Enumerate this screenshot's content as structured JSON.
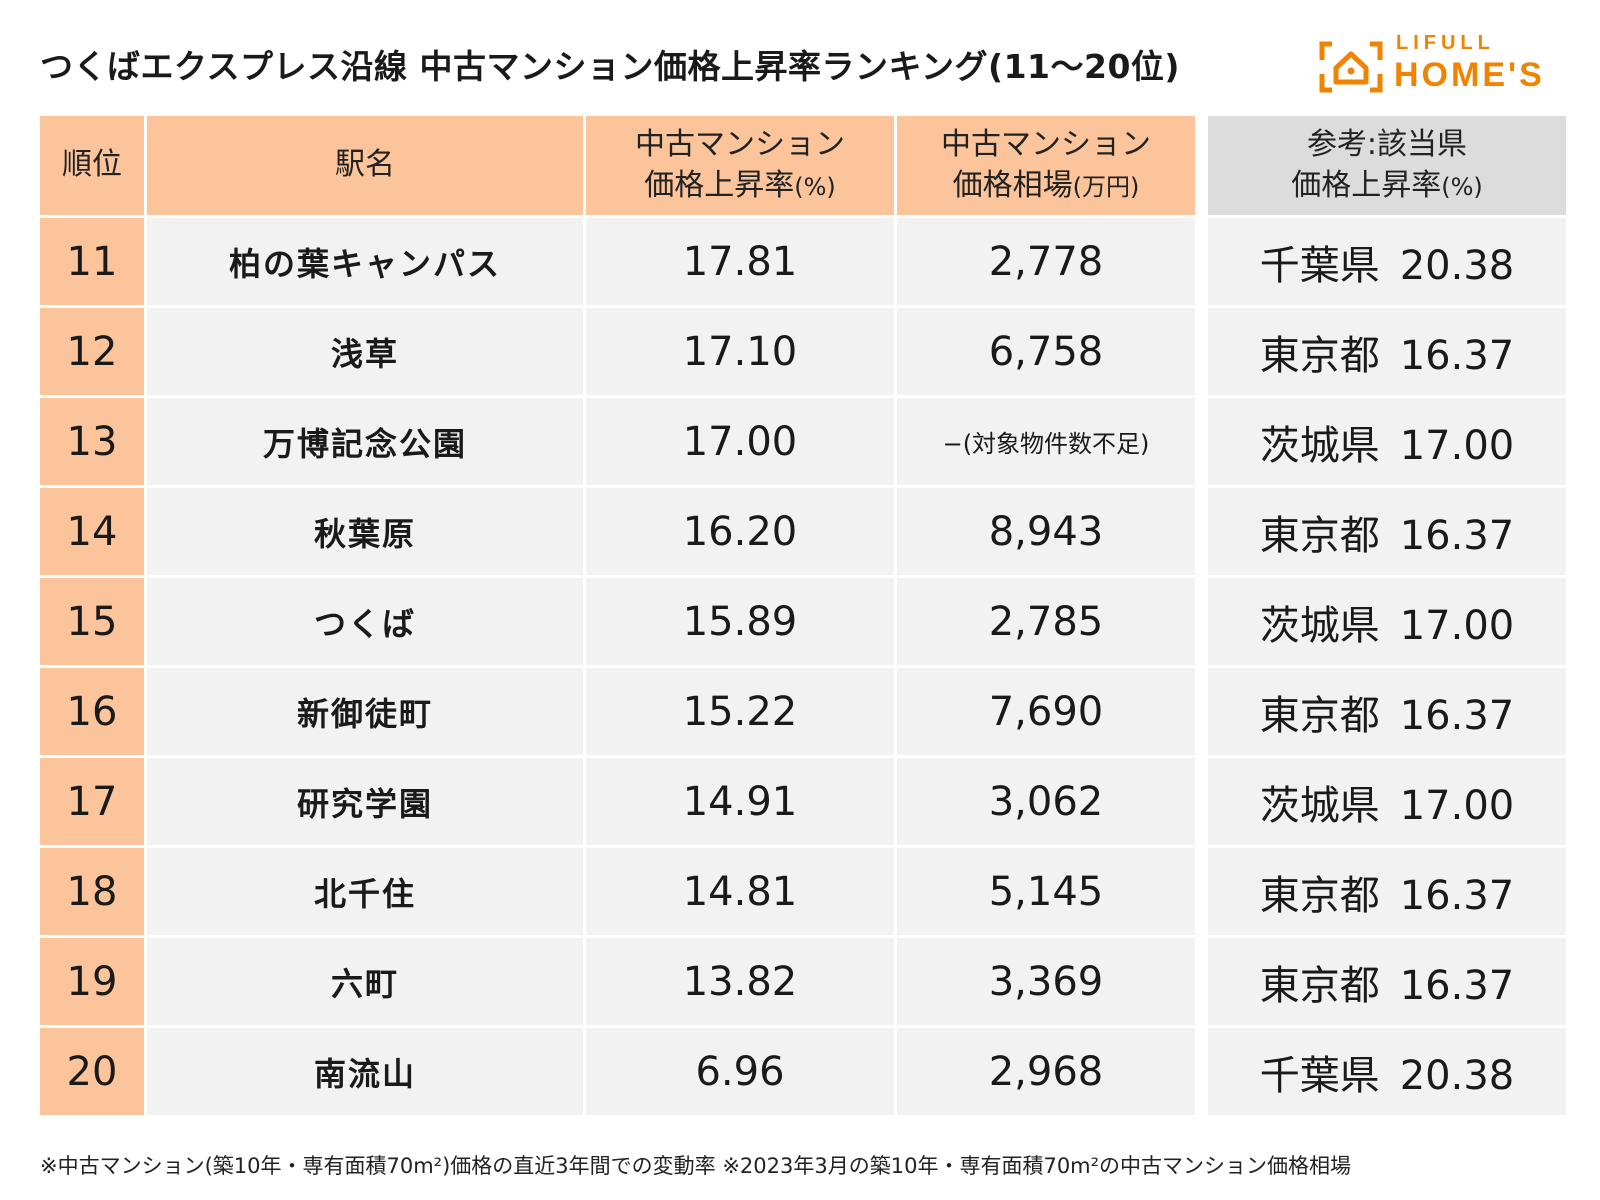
{
  "title": "つくばエクスプレス沿線 中古マンション価格上昇率ランキング(11〜20位)",
  "logo": {
    "top": "LIFULL",
    "main": "HOME'S",
    "icon": "house-icon",
    "color": "#f08300"
  },
  "colors": {
    "header_orange": "#fbc49a",
    "header_gray": "#dcdcdc",
    "cell_bg": "#f2f2f2"
  },
  "chart_data": {
    "type": "table",
    "columns": {
      "rank": "順位",
      "station": "駅名",
      "rate_line1": "中古マンション",
      "rate_line2": "価格上昇率",
      "rate_unit": "(%)",
      "price_line1": "中古マンション",
      "price_line2": "価格相場",
      "price_unit": "(万円)",
      "ref_line1": "参考:該当県",
      "ref_line2": "価格上昇率",
      "ref_unit": "(%)"
    },
    "rows": [
      {
        "rank": "11",
        "station": "柏の葉キャンパス",
        "rate": "17.81",
        "price": "2,778",
        "pref": "千葉県",
        "pref_rate": "20.38"
      },
      {
        "rank": "12",
        "station": "浅草",
        "rate": "17.10",
        "price": "6,758",
        "pref": "東京都",
        "pref_rate": "16.37"
      },
      {
        "rank": "13",
        "station": "万博記念公園",
        "rate": "17.00",
        "price": "−(対象物件数不足)",
        "pref": "茨城県",
        "pref_rate": "17.00"
      },
      {
        "rank": "14",
        "station": "秋葉原",
        "rate": "16.20",
        "price": "8,943",
        "pref": "東京都",
        "pref_rate": "16.37"
      },
      {
        "rank": "15",
        "station": "つくば",
        "rate": "15.89",
        "price": "2,785",
        "pref": "茨城県",
        "pref_rate": "17.00"
      },
      {
        "rank": "16",
        "station": "新御徒町",
        "rate": "15.22",
        "price": "7,690",
        "pref": "東京都",
        "pref_rate": "16.37"
      },
      {
        "rank": "17",
        "station": "研究学園",
        "rate": "14.91",
        "price": "3,062",
        "pref": "茨城県",
        "pref_rate": "17.00"
      },
      {
        "rank": "18",
        "station": "北千住",
        "rate": "14.81",
        "price": "5,145",
        "pref": "東京都",
        "pref_rate": "16.37"
      },
      {
        "rank": "19",
        "station": "六町",
        "rate": "13.82",
        "price": "3,369",
        "pref": "東京都",
        "pref_rate": "16.37"
      },
      {
        "rank": "20",
        "station": "南流山",
        "rate": "6.96",
        "price": "2,968",
        "pref": "千葉県",
        "pref_rate": "20.38"
      }
    ]
  },
  "footnote": "※中古マンション(築10年・専有面積70m²)価格の直近3年間での変動率 ※2023年3月の築10年・専有面積70m²の中古マンション価格相場"
}
